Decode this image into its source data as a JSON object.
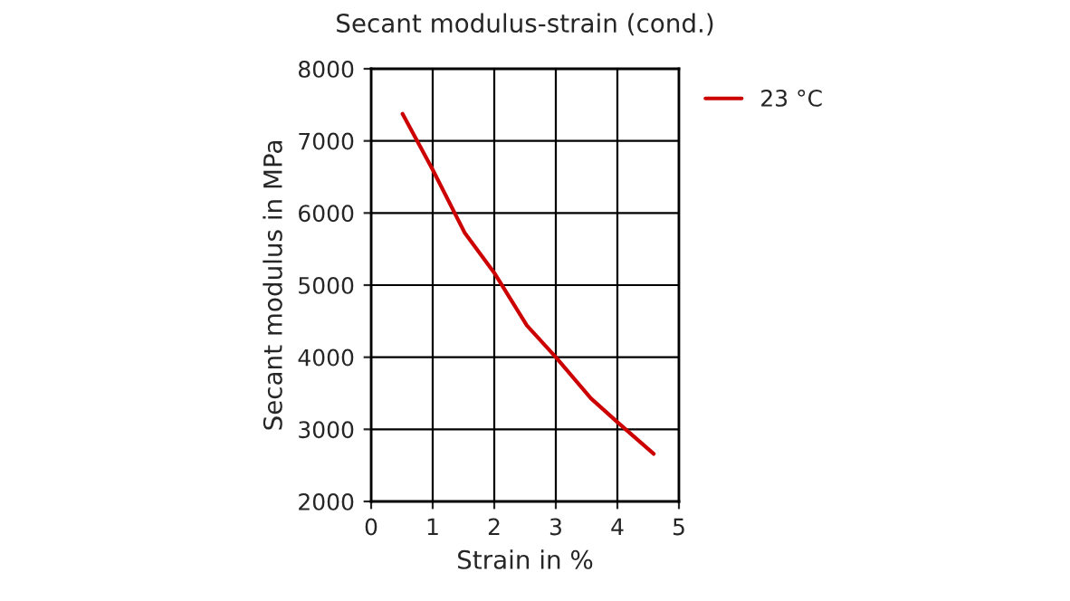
{
  "chart_data": {
    "type": "line",
    "title": "Secant modulus-strain (cond.)",
    "xlabel": "Strain in %",
    "ylabel": "Secant modulus in MPa",
    "series": [
      {
        "name": "23 °C",
        "color": "#cc0000",
        "x": [
          0.51,
          1.0,
          1.52,
          2.0,
          2.53,
          3.0,
          3.57,
          4.0,
          4.59
        ],
        "values": [
          7375,
          6600,
          5725,
          5170,
          4440,
          4000,
          3430,
          3100,
          2660
        ]
      }
    ],
    "xlim": [
      0,
      5
    ],
    "xticks": [
      0,
      1,
      2,
      3,
      4,
      5
    ],
    "ylim": [
      2000,
      8000
    ],
    "yticks": [
      2000,
      3000,
      4000,
      5000,
      6000,
      7000,
      8000
    ],
    "grid": true,
    "legend": "right",
    "marker": "none",
    "line_style": "solid"
  }
}
